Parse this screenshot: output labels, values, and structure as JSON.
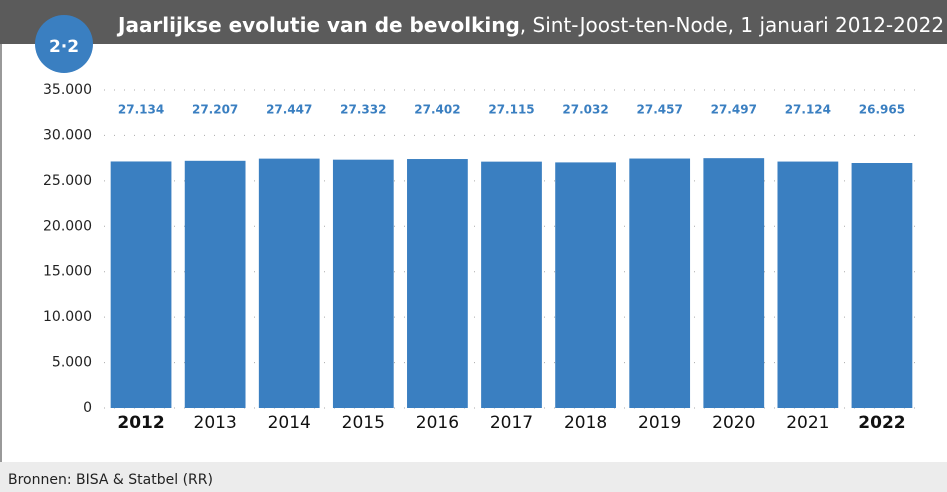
{
  "chart_data": {
    "type": "bar",
    "badge": "2·2",
    "title": "Jaarlijkse evolutie van de bevolking",
    "subtitle": ", Sint-Joost-ten-Node, 1 januari 2012-2022",
    "source": "Bronnen: BISA & Statbel (RR)",
    "categories": [
      "2012",
      "2013",
      "2014",
      "2015",
      "2016",
      "2017",
      "2018",
      "2019",
      "2020",
      "2021",
      "2022"
    ],
    "values": [
      27134,
      27207,
      27447,
      27332,
      27402,
      27115,
      27032,
      27457,
      27497,
      27124,
      26965
    ],
    "value_labels": [
      "27.134",
      "27.207",
      "27.447",
      "27.332",
      "27.402",
      "27.115",
      "27.032",
      "27.457",
      "27.497",
      "27.124",
      "26.965"
    ],
    "color": "#3a7fc1",
    "ylim": [
      0,
      35000
    ],
    "yticks": [
      0,
      {
        "value": 5000,
        "label": "5.000"
      },
      {
        "value": 10000,
        "label": "10.000"
      },
      {
        "value": 15000,
        "label": "15.000"
      },
      {
        "value": 20000,
        "label": "20.000"
      },
      {
        "value": 25000,
        "label": "25.000"
      },
      {
        "value": 30000,
        "label": "30.000"
      },
      {
        "value": 35000,
        "label": "35.000"
      }
    ],
    "grid": true
  }
}
